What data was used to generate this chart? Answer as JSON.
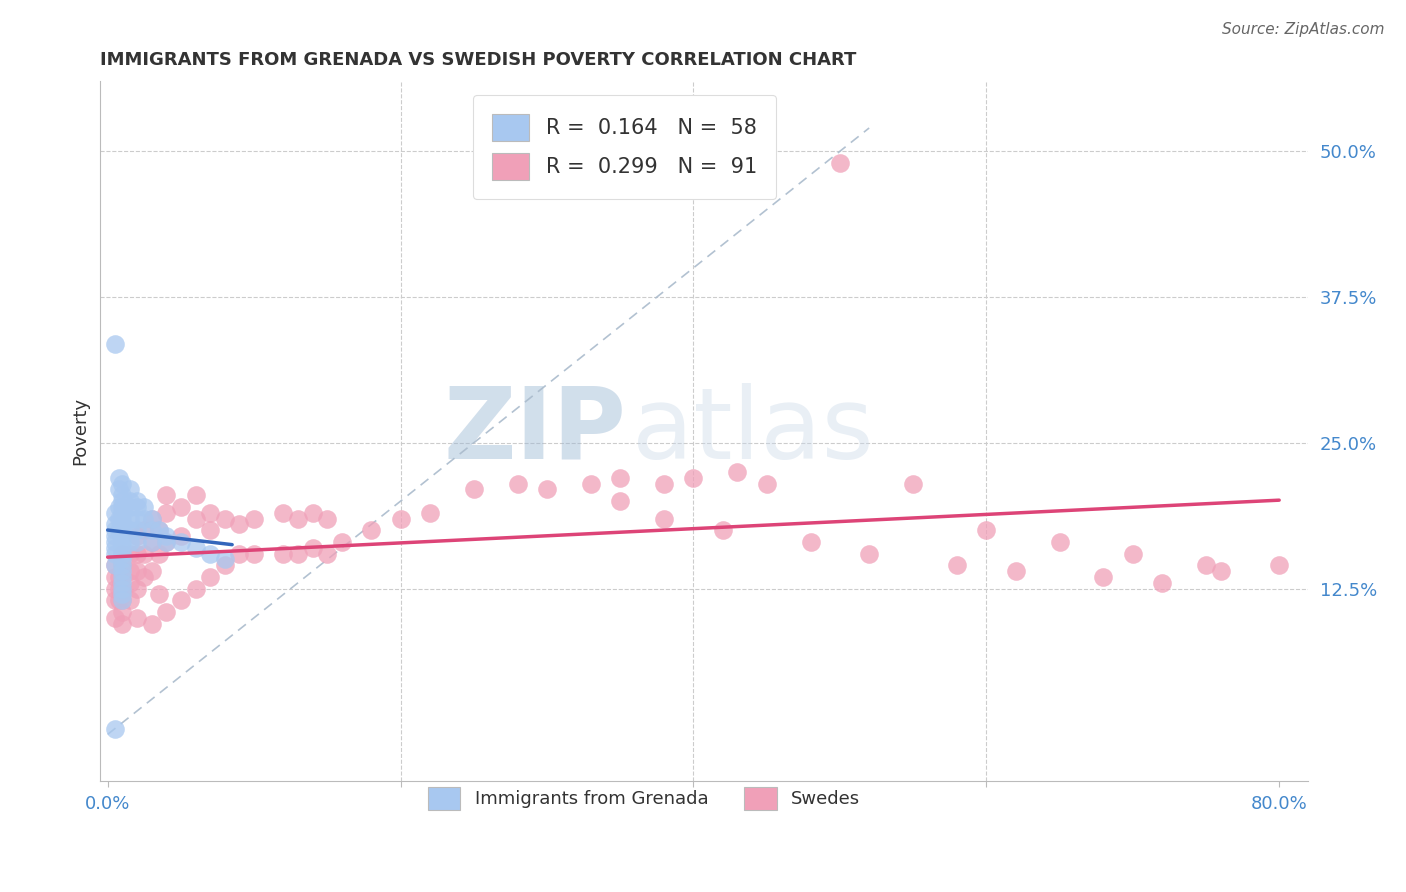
{
  "title": "IMMIGRANTS FROM GRENADA VS SWEDISH POVERTY CORRELATION CHART",
  "source": "Source: ZipAtlas.com",
  "ylabel": "Poverty",
  "yticks": [
    0.0,
    0.125,
    0.25,
    0.375,
    0.5
  ],
  "ytick_labels": [
    "",
    "12.5%",
    "25.0%",
    "37.5%",
    "50.0%"
  ],
  "xlim": [
    -0.005,
    0.82
  ],
  "ylim": [
    -0.04,
    0.56
  ],
  "blue_color": "#A8C8F0",
  "pink_color": "#F0A0B8",
  "blue_line_color": "#3366BB",
  "pink_line_color": "#DD4477",
  "diag_line_color": "#AABBCC",
  "watermark_zip": "ZIP",
  "watermark_atlas": "atlas",
  "background_color": "#FFFFFF",
  "blue_scatter_x": [
    0.005,
    0.005,
    0.005,
    0.005,
    0.005,
    0.005,
    0.005,
    0.005,
    0.008,
    0.008,
    0.008,
    0.008,
    0.008,
    0.01,
    0.01,
    0.01,
    0.01,
    0.01,
    0.01,
    0.01,
    0.01,
    0.01,
    0.01,
    0.01,
    0.01,
    0.01,
    0.01,
    0.01,
    0.01,
    0.01,
    0.01,
    0.01,
    0.01,
    0.015,
    0.015,
    0.015,
    0.015,
    0.015,
    0.015,
    0.02,
    0.02,
    0.02,
    0.02,
    0.02,
    0.025,
    0.025,
    0.03,
    0.03,
    0.03,
    0.035,
    0.04,
    0.04,
    0.05,
    0.06,
    0.07,
    0.08,
    0.005,
    0.005
  ],
  "blue_scatter_y": [
    0.19,
    0.18,
    0.175,
    0.17,
    0.165,
    0.16,
    0.155,
    0.145,
    0.22,
    0.21,
    0.195,
    0.185,
    0.175,
    0.215,
    0.205,
    0.2,
    0.195,
    0.19,
    0.185,
    0.18,
    0.175,
    0.17,
    0.165,
    0.16,
    0.155,
    0.15,
    0.145,
    0.14,
    0.135,
    0.13,
    0.125,
    0.12,
    0.115,
    0.21,
    0.2,
    0.195,
    0.185,
    0.175,
    0.165,
    0.2,
    0.195,
    0.185,
    0.175,
    0.165,
    0.195,
    0.185,
    0.185,
    0.175,
    0.165,
    0.175,
    0.17,
    0.165,
    0.165,
    0.16,
    0.155,
    0.15,
    0.335,
    0.005
  ],
  "pink_scatter_x": [
    0.005,
    0.005,
    0.005,
    0.005,
    0.005,
    0.008,
    0.008,
    0.008,
    0.01,
    0.01,
    0.01,
    0.01,
    0.01,
    0.01,
    0.01,
    0.015,
    0.015,
    0.015,
    0.015,
    0.02,
    0.02,
    0.02,
    0.02,
    0.02,
    0.025,
    0.025,
    0.025,
    0.03,
    0.03,
    0.03,
    0.03,
    0.035,
    0.035,
    0.035,
    0.04,
    0.04,
    0.04,
    0.04,
    0.05,
    0.05,
    0.05,
    0.06,
    0.06,
    0.06,
    0.07,
    0.07,
    0.07,
    0.08,
    0.08,
    0.09,
    0.09,
    0.1,
    0.1,
    0.12,
    0.12,
    0.13,
    0.13,
    0.14,
    0.14,
    0.15,
    0.15,
    0.16,
    0.18,
    0.2,
    0.22,
    0.25,
    0.28,
    0.3,
    0.33,
    0.35,
    0.38,
    0.4,
    0.43,
    0.45,
    0.5,
    0.55,
    0.6,
    0.65,
    0.7,
    0.75,
    0.35,
    0.38,
    0.42,
    0.48,
    0.52,
    0.58,
    0.62,
    0.68,
    0.72,
    0.76,
    0.8
  ],
  "pink_scatter_y": [
    0.145,
    0.135,
    0.125,
    0.115,
    0.1,
    0.135,
    0.125,
    0.115,
    0.155,
    0.145,
    0.135,
    0.125,
    0.115,
    0.105,
    0.095,
    0.155,
    0.14,
    0.13,
    0.115,
    0.17,
    0.155,
    0.14,
    0.125,
    0.1,
    0.175,
    0.155,
    0.135,
    0.185,
    0.165,
    0.14,
    0.095,
    0.175,
    0.155,
    0.12,
    0.205,
    0.19,
    0.165,
    0.105,
    0.195,
    0.17,
    0.115,
    0.205,
    0.185,
    0.125,
    0.19,
    0.175,
    0.135,
    0.185,
    0.145,
    0.18,
    0.155,
    0.185,
    0.155,
    0.19,
    0.155,
    0.185,
    0.155,
    0.19,
    0.16,
    0.185,
    0.155,
    0.165,
    0.175,
    0.185,
    0.19,
    0.21,
    0.215,
    0.21,
    0.215,
    0.22,
    0.215,
    0.22,
    0.225,
    0.215,
    0.49,
    0.215,
    0.175,
    0.165,
    0.155,
    0.145,
    0.2,
    0.185,
    0.175,
    0.165,
    0.155,
    0.145,
    0.14,
    0.135,
    0.13,
    0.14,
    0.145
  ]
}
